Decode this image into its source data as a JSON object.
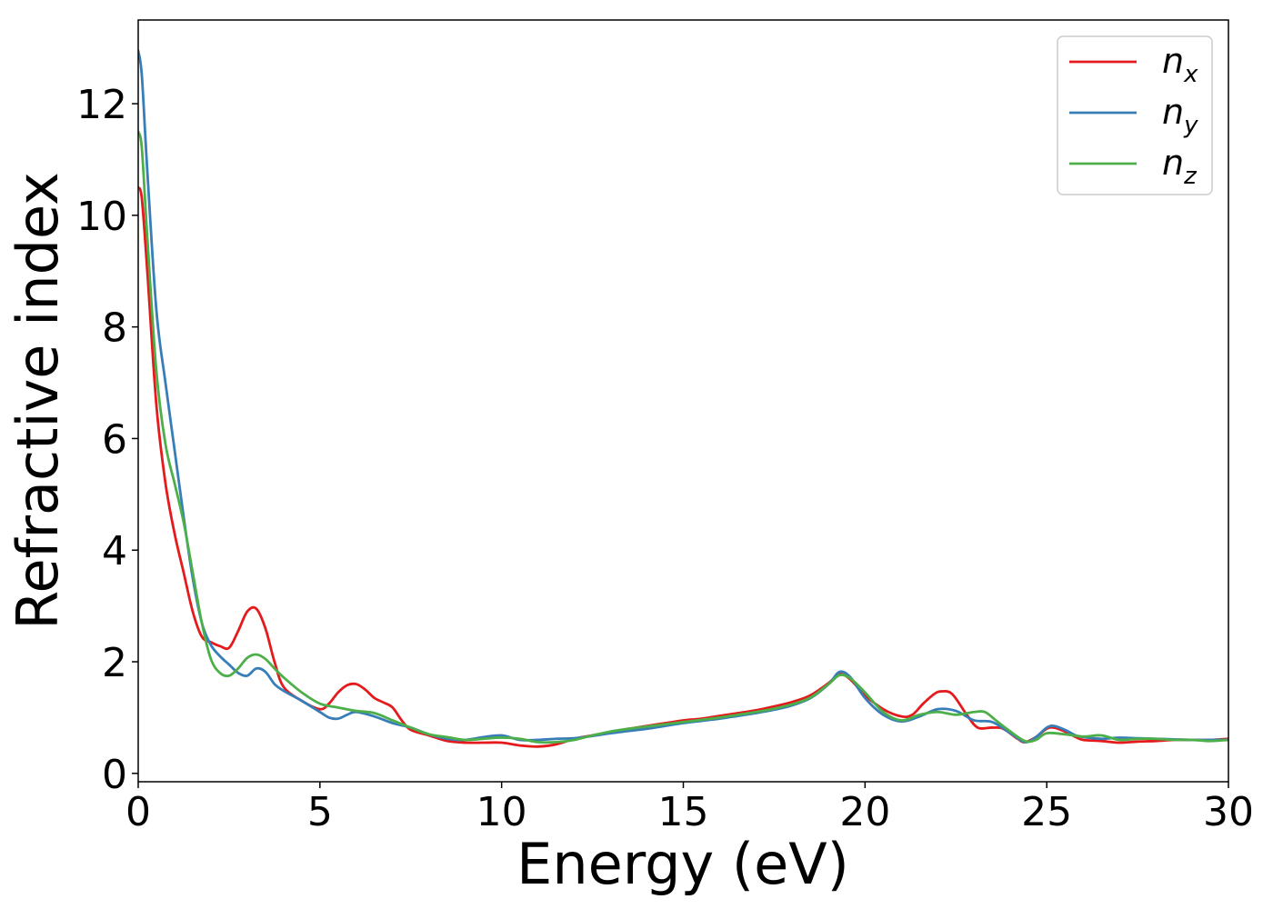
{
  "chart_data": {
    "type": "line",
    "title": "",
    "xlabel": "Energy (eV)",
    "ylabel": "Refractive index",
    "xlim": [
      0,
      30
    ],
    "ylim": [
      -0.15,
      13.5
    ],
    "xticks": [
      0,
      5,
      10,
      15,
      20,
      25,
      30
    ],
    "yticks": [
      0,
      2,
      4,
      6,
      8,
      10,
      12
    ],
    "grid": false,
    "legend_position": "top-right",
    "series": [
      {
        "name": "x",
        "legend_base": "n",
        "legend_sub": "x",
        "color": "#e41a1c",
        "x": [
          0,
          0.1,
          0.25,
          0.5,
          0.75,
          1.0,
          1.25,
          1.5,
          1.75,
          2.0,
          2.25,
          2.5,
          2.75,
          3.0,
          3.25,
          3.5,
          3.75,
          4.0,
          4.5,
          5.0,
          5.25,
          5.5,
          5.75,
          6.0,
          6.25,
          6.5,
          6.75,
          7.0,
          7.25,
          7.5,
          8.0,
          8.5,
          9.0,
          9.5,
          10.0,
          10.5,
          11.0,
          11.5,
          12.0,
          12.5,
          13.0,
          13.5,
          14.0,
          14.5,
          15.0,
          15.5,
          16.0,
          16.5,
          17.0,
          17.5,
          18.0,
          18.5,
          19.0,
          19.3,
          19.6,
          20.0,
          20.5,
          21.0,
          21.3,
          21.6,
          21.9,
          22.1,
          22.4,
          22.8,
          23.1,
          23.5,
          23.8,
          24.2,
          24.4,
          24.7,
          25.0,
          25.2,
          25.5,
          25.8,
          26.0,
          26.5,
          27.0,
          27.5,
          28.0,
          28.5,
          29.0,
          29.5,
          30.0
        ],
        "y": [
          10.5,
          10.3,
          9.0,
          6.6,
          5.2,
          4.3,
          3.6,
          2.9,
          2.45,
          2.35,
          2.28,
          2.25,
          2.55,
          2.9,
          2.95,
          2.6,
          2.0,
          1.55,
          1.3,
          1.15,
          1.25,
          1.45,
          1.58,
          1.6,
          1.5,
          1.35,
          1.27,
          1.18,
          0.95,
          0.78,
          0.68,
          0.58,
          0.55,
          0.55,
          0.55,
          0.5,
          0.48,
          0.52,
          0.62,
          0.68,
          0.74,
          0.8,
          0.85,
          0.9,
          0.95,
          0.98,
          1.03,
          1.08,
          1.13,
          1.2,
          1.28,
          1.4,
          1.62,
          1.78,
          1.68,
          1.4,
          1.15,
          1.02,
          1.05,
          1.25,
          1.42,
          1.47,
          1.42,
          1.05,
          0.82,
          0.82,
          0.8,
          0.62,
          0.56,
          0.65,
          0.8,
          0.82,
          0.75,
          0.65,
          0.6,
          0.58,
          0.55,
          0.57,
          0.58,
          0.6,
          0.6,
          0.6,
          0.62
        ]
      },
      {
        "name": "y",
        "legend_base": "n",
        "legend_sub": "y",
        "color": "#377eb8",
        "x": [
          0,
          0.1,
          0.25,
          0.5,
          0.75,
          1.0,
          1.25,
          1.5,
          1.75,
          2.0,
          2.25,
          2.5,
          2.75,
          3.0,
          3.25,
          3.5,
          3.75,
          4.0,
          4.5,
          5.0,
          5.25,
          5.5,
          5.75,
          6.0,
          6.5,
          7.0,
          7.5,
          8.0,
          8.5,
          9.0,
          9.5,
          10.0,
          10.5,
          11.0,
          11.5,
          12.0,
          12.5,
          13.0,
          13.5,
          14.0,
          14.5,
          15.0,
          15.5,
          16.0,
          16.5,
          17.0,
          17.5,
          18.0,
          18.5,
          19.0,
          19.3,
          19.6,
          20.0,
          20.5,
          21.0,
          21.5,
          22.0,
          22.5,
          23.0,
          23.5,
          24.0,
          24.4,
          24.7,
          25.0,
          25.2,
          25.5,
          25.8,
          26.0,
          26.5,
          27.0,
          27.5,
          28.0,
          28.5,
          29.0,
          29.5,
          30.0
        ],
        "y": [
          12.95,
          12.5,
          10.8,
          8.3,
          7.0,
          5.8,
          4.6,
          3.5,
          2.7,
          2.3,
          2.1,
          1.95,
          1.8,
          1.75,
          1.88,
          1.82,
          1.6,
          1.48,
          1.3,
          1.1,
          1.0,
          0.98,
          1.05,
          1.1,
          1.02,
          0.9,
          0.82,
          0.7,
          0.62,
          0.6,
          0.65,
          0.68,
          0.6,
          0.6,
          0.62,
          0.63,
          0.67,
          0.72,
          0.76,
          0.8,
          0.85,
          0.9,
          0.94,
          0.98,
          1.03,
          1.08,
          1.14,
          1.22,
          1.35,
          1.6,
          1.82,
          1.72,
          1.35,
          1.05,
          0.93,
          1.02,
          1.15,
          1.12,
          0.95,
          0.92,
          0.72,
          0.56,
          0.65,
          0.82,
          0.85,
          0.78,
          0.68,
          0.65,
          0.62,
          0.64,
          0.63,
          0.62,
          0.61,
          0.6,
          0.6,
          0.6
        ]
      },
      {
        "name": "z",
        "legend_base": "n",
        "legend_sub": "z",
        "color": "#4daf4a",
        "x": [
          0,
          0.1,
          0.25,
          0.5,
          0.75,
          1.0,
          1.25,
          1.5,
          1.75,
          2.0,
          2.25,
          2.5,
          2.75,
          3.0,
          3.25,
          3.5,
          3.75,
          4.0,
          4.5,
          5.0,
          5.5,
          6.0,
          6.5,
          7.0,
          7.5,
          8.0,
          8.5,
          9.0,
          9.5,
          10.0,
          10.5,
          11.0,
          11.5,
          12.0,
          12.5,
          13.0,
          13.5,
          14.0,
          14.5,
          15.0,
          15.5,
          16.0,
          16.5,
          17.0,
          17.5,
          18.0,
          18.5,
          19.0,
          19.3,
          19.6,
          20.0,
          20.5,
          21.0,
          21.5,
          22.0,
          22.5,
          23.0,
          23.3,
          23.6,
          24.0,
          24.4,
          24.7,
          25.0,
          25.5,
          26.0,
          26.5,
          27.0,
          27.5,
          28.0,
          28.5,
          29.0,
          29.5,
          30.0
        ],
        "y": [
          11.5,
          11.2,
          9.6,
          7.2,
          5.9,
          5.2,
          4.5,
          3.6,
          2.7,
          2.05,
          1.8,
          1.75,
          1.88,
          2.07,
          2.13,
          2.05,
          1.88,
          1.72,
          1.45,
          1.25,
          1.18,
          1.12,
          1.08,
          0.95,
          0.82,
          0.7,
          0.65,
          0.6,
          0.62,
          0.64,
          0.62,
          0.56,
          0.56,
          0.6,
          0.68,
          0.75,
          0.8,
          0.84,
          0.88,
          0.92,
          0.96,
          1.0,
          1.05,
          1.1,
          1.16,
          1.24,
          1.36,
          1.6,
          1.76,
          1.7,
          1.45,
          1.1,
          0.95,
          1.05,
          1.1,
          1.05,
          1.1,
          1.1,
          0.95,
          0.75,
          0.58,
          0.6,
          0.72,
          0.7,
          0.66,
          0.68,
          0.6,
          0.62,
          0.62,
          0.6,
          0.6,
          0.58,
          0.6
        ]
      }
    ]
  }
}
